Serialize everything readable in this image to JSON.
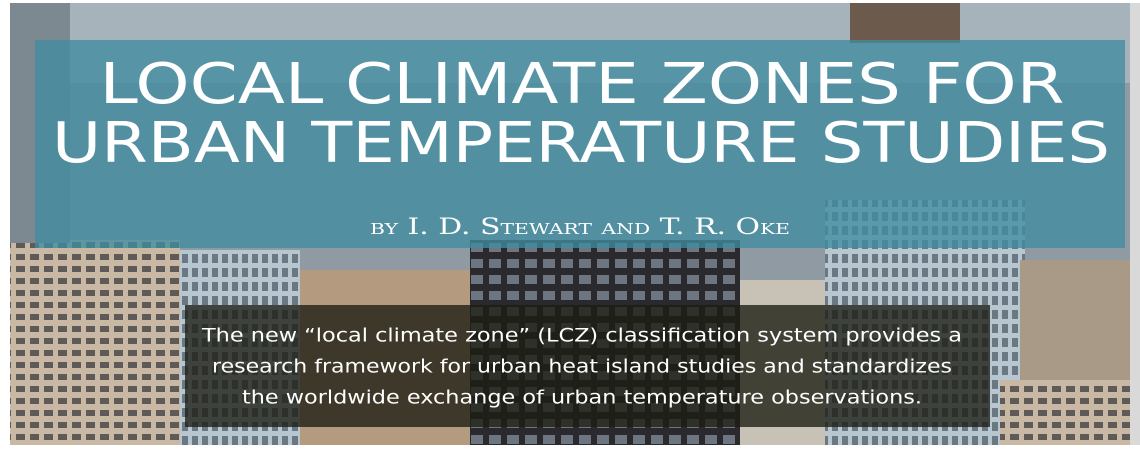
{
  "header": {
    "title_lines": [
      "LOCAL CLIMATE ZONES FOR",
      "URBAN TEMPERATURE STUDIES"
    ],
    "byline": "by I. D. Stewart and T. R. Oke",
    "summary_lines": [
      "The new “local climate zone” (LCZ) classification system provides a",
      "research framework for urban heat island studies and standardizes",
      "the worldwide exchange of urban temperature observations."
    ]
  }
}
